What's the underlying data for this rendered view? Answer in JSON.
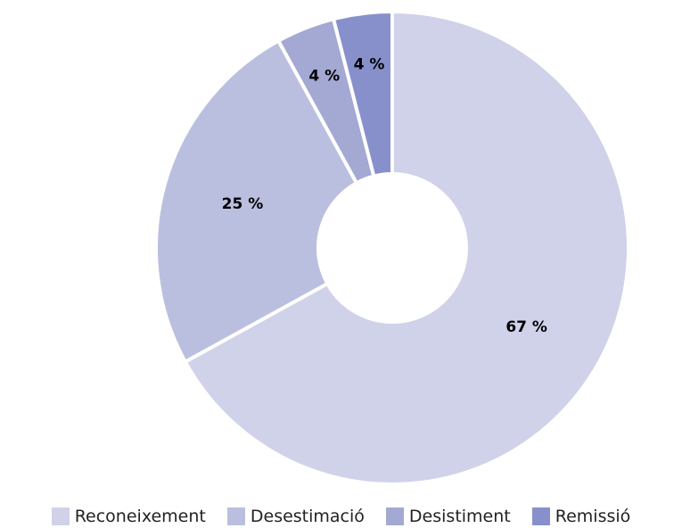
{
  "chart_data": {
    "type": "donut",
    "categories": [
      "Reconeixement",
      "Desestimació",
      "Desistiment",
      "Remissió"
    ],
    "values": [
      67,
      25,
      4,
      4
    ],
    "value_labels": [
      "67 %",
      "25 %",
      "4 %",
      "4 %"
    ],
    "colors": [
      "#d0d2ea",
      "#bbbfdf",
      "#a3a9d3",
      "#8890cc"
    ],
    "legend": "bottom"
  }
}
